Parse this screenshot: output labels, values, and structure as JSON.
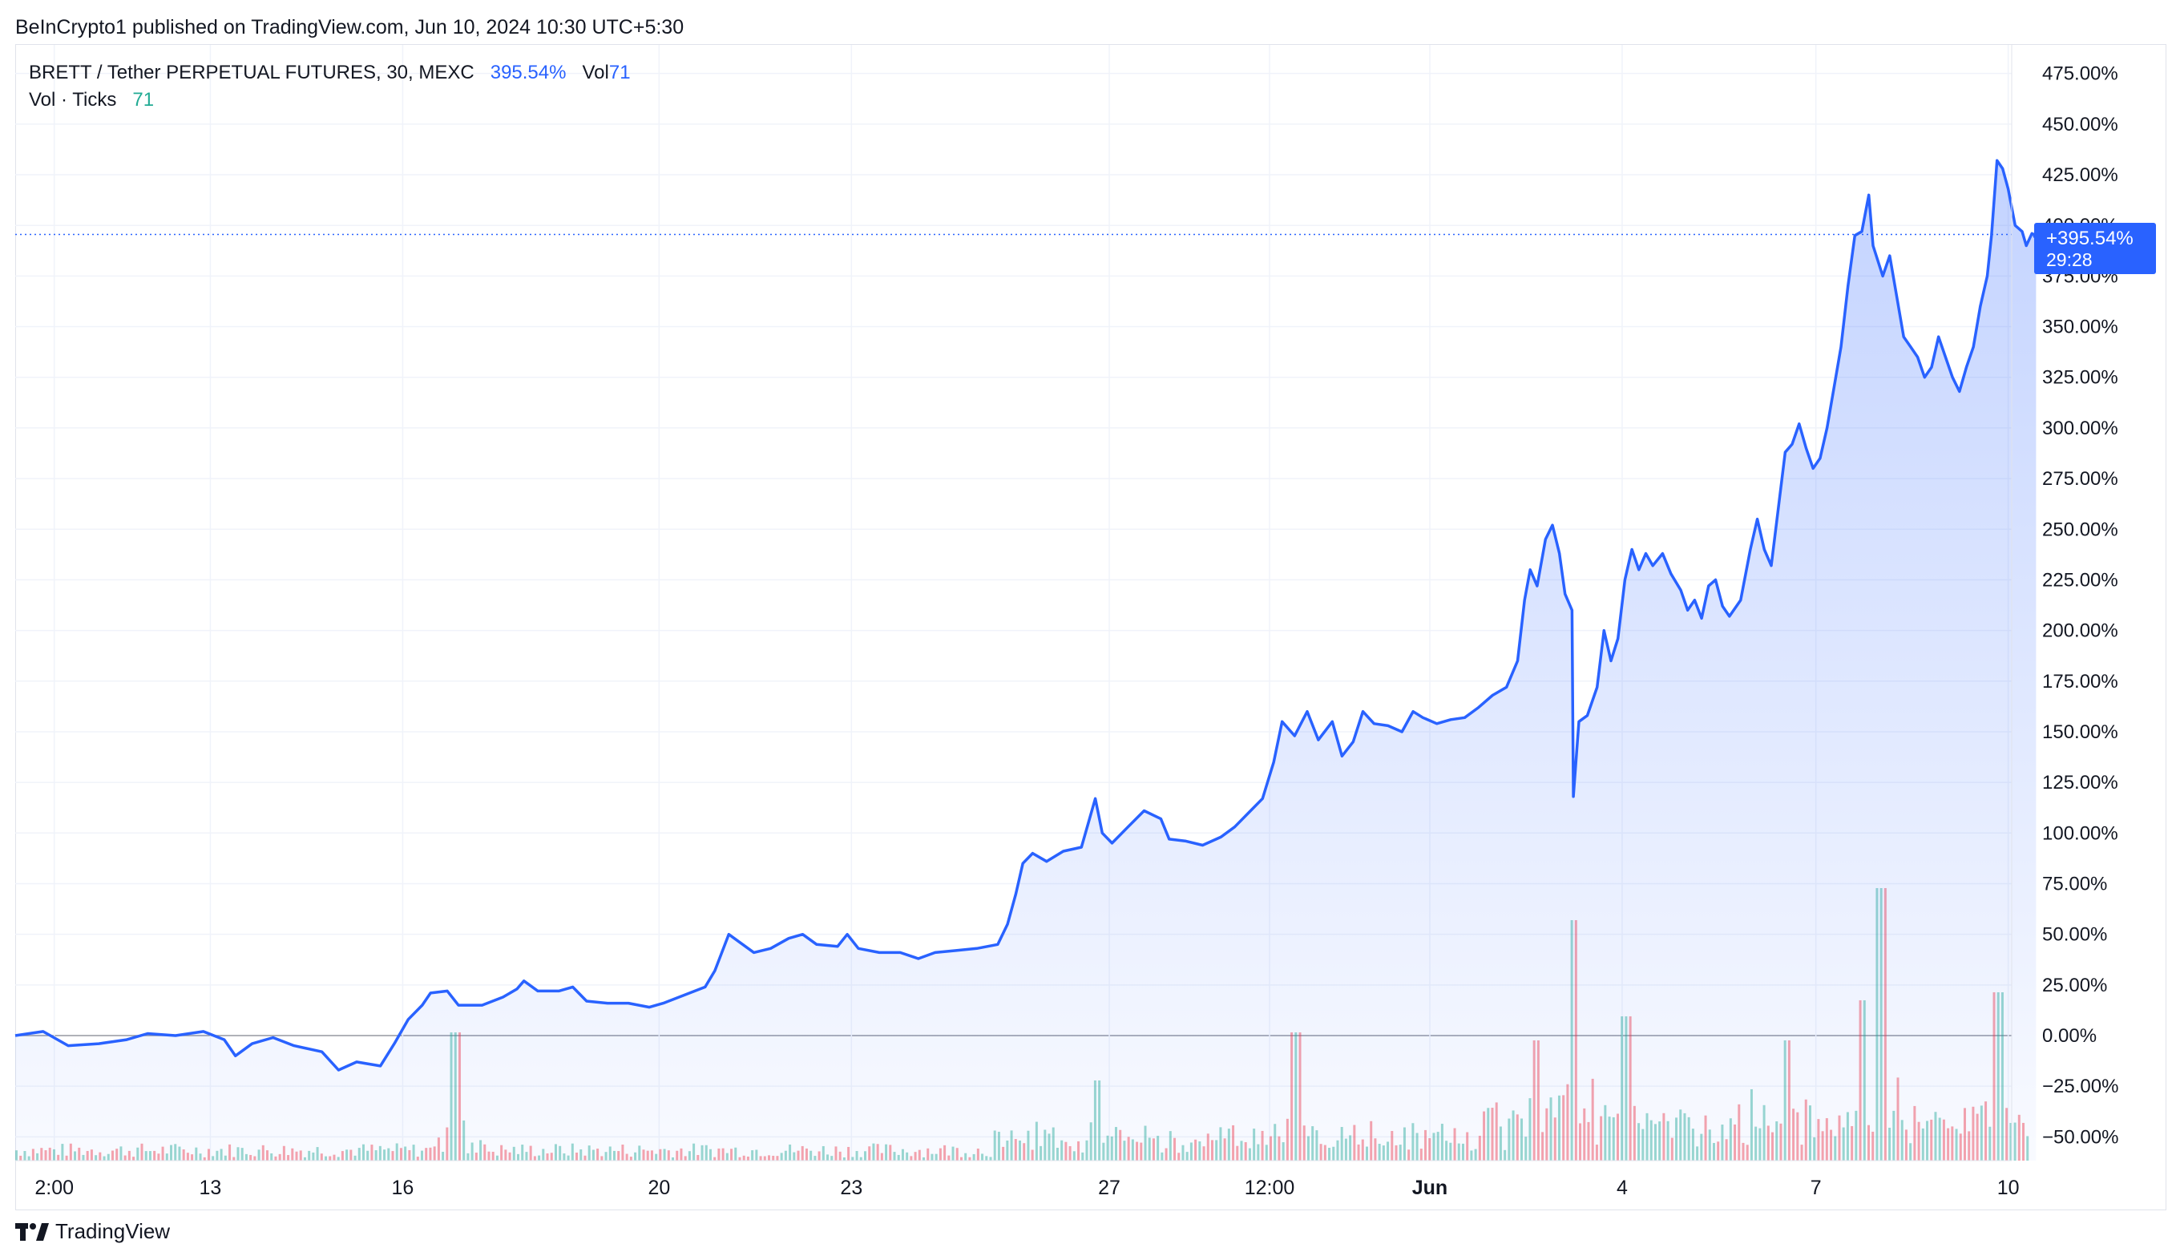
{
  "header": {
    "published_line": "BeInCrypto1 published on TradingView.com, Jun 10, 2024 10:30 UTC+5:30"
  },
  "legend": {
    "symbol": "BRETT / Tether PERPETUAL FUTURES, 30, MEXC",
    "change": "395.54%",
    "vol_label": "Vol",
    "vol_value": "71",
    "vol_ticks_label": "Vol · Ticks",
    "vol_ticks_value": "71"
  },
  "price_badge": {
    "value": "+395.54%",
    "countdown": "29:28"
  },
  "footer": {
    "brand": "TradingView"
  },
  "colors": {
    "line": "#2962ff",
    "volume_up": "#22ab94",
    "volume_down": "#f23645",
    "grid": "#f0f3fa",
    "zero_line": "#9598a1"
  },
  "chart_data": {
    "type": "area",
    "y_unit": "%",
    "y_ticks": [
      475,
      450,
      425,
      400,
      375,
      350,
      325,
      300,
      275,
      250,
      225,
      200,
      175,
      150,
      125,
      100,
      75,
      50,
      25,
      0,
      -25,
      -50
    ],
    "y_tick_labels": [
      "475.00%",
      "450.00%",
      "425.00%",
      "400.00%",
      "375.00%",
      "350.00%",
      "325.00%",
      "300.00%",
      "275.00%",
      "250.00%",
      "225.00%",
      "200.00%",
      "175.00%",
      "150.00%",
      "125.00%",
      "100.00%",
      "75.00%",
      "50.00%",
      "25.00%",
      "0.00%",
      "−25.00%",
      "−50.00%"
    ],
    "ylim": [
      -60,
      495
    ],
    "x_range": [
      0,
      1440
    ],
    "x_ticks": [
      {
        "x": 28,
        "label": "2:00",
        "bold": false
      },
      {
        "x": 140,
        "label": "13",
        "bold": false
      },
      {
        "x": 278,
        "label": "16",
        "bold": false
      },
      {
        "x": 462,
        "label": "20",
        "bold": false
      },
      {
        "x": 600,
        "label": "23",
        "bold": false
      },
      {
        "x": 785,
        "label": "27",
        "bold": false
      },
      {
        "x": 900,
        "label": "12:00",
        "bold": false
      },
      {
        "x": 1015,
        "label": "Jun",
        "bold": true
      },
      {
        "x": 1153,
        "label": "4",
        "bold": false
      },
      {
        "x": 1292,
        "label": "7",
        "bold": false
      },
      {
        "x": 1430,
        "label": "10",
        "bold": false
      }
    ],
    "last_value": 395.54,
    "series": [
      {
        "points": [
          [
            0,
            0
          ],
          [
            20,
            2
          ],
          [
            38,
            -5
          ],
          [
            60,
            -4
          ],
          [
            80,
            -2
          ],
          [
            95,
            1
          ],
          [
            115,
            0
          ],
          [
            135,
            2
          ],
          [
            150,
            -2
          ],
          [
            158,
            -10
          ],
          [
            170,
            -4
          ],
          [
            185,
            -1
          ],
          [
            200,
            -5
          ],
          [
            220,
            -8
          ],
          [
            232,
            -17
          ],
          [
            245,
            -13
          ],
          [
            262,
            -15
          ],
          [
            272,
            -4
          ],
          [
            282,
            8
          ],
          [
            292,
            15
          ],
          [
            298,
            21
          ],
          [
            310,
            22
          ],
          [
            318,
            15
          ],
          [
            335,
            15
          ],
          [
            350,
            19
          ],
          [
            360,
            23
          ],
          [
            365,
            27
          ],
          [
            375,
            22
          ],
          [
            390,
            22
          ],
          [
            400,
            24
          ],
          [
            410,
            17
          ],
          [
            425,
            16
          ],
          [
            440,
            16
          ],
          [
            455,
            14
          ],
          [
            465,
            16
          ],
          [
            480,
            20
          ],
          [
            495,
            24
          ],
          [
            502,
            32
          ],
          [
            512,
            50
          ],
          [
            520,
            46
          ],
          [
            530,
            41
          ],
          [
            542,
            43
          ],
          [
            555,
            48
          ],
          [
            565,
            50
          ],
          [
            575,
            45
          ],
          [
            590,
            44
          ],
          [
            597,
            50
          ],
          [
            605,
            43
          ],
          [
            620,
            41
          ],
          [
            635,
            41
          ],
          [
            648,
            38
          ],
          [
            660,
            41
          ],
          [
            675,
            42
          ],
          [
            690,
            43
          ],
          [
            705,
            45
          ],
          [
            712,
            55
          ],
          [
            718,
            70
          ],
          [
            723,
            85
          ],
          [
            730,
            90
          ],
          [
            740,
            86
          ],
          [
            752,
            91
          ],
          [
            765,
            93
          ],
          [
            775,
            117
          ],
          [
            780,
            100
          ],
          [
            787,
            95
          ],
          [
            797,
            102
          ],
          [
            810,
            111
          ],
          [
            822,
            107
          ],
          [
            828,
            97
          ],
          [
            840,
            96
          ],
          [
            852,
            94
          ],
          [
            865,
            98
          ],
          [
            875,
            103
          ],
          [
            885,
            110
          ],
          [
            895,
            117
          ],
          [
            903,
            135
          ],
          [
            909,
            155
          ],
          [
            918,
            148
          ],
          [
            927,
            160
          ],
          [
            935,
            146
          ],
          [
            945,
            155
          ],
          [
            952,
            138
          ],
          [
            960,
            145
          ],
          [
            967,
            160
          ],
          [
            975,
            154
          ],
          [
            985,
            153
          ],
          [
            995,
            150
          ],
          [
            1003,
            160
          ],
          [
            1010,
            157
          ],
          [
            1020,
            154
          ],
          [
            1030,
            156
          ],
          [
            1040,
            157
          ],
          [
            1050,
            162
          ],
          [
            1060,
            168
          ],
          [
            1070,
            172
          ],
          [
            1078,
            185
          ],
          [
            1083,
            215
          ],
          [
            1087,
            230
          ],
          [
            1092,
            222
          ],
          [
            1098,
            245
          ],
          [
            1103,
            252
          ],
          [
            1108,
            238
          ],
          [
            1112,
            218
          ],
          [
            1117,
            210
          ],
          [
            1118,
            118
          ],
          [
            1122,
            155
          ],
          [
            1128,
            158
          ],
          [
            1135,
            172
          ],
          [
            1140,
            200
          ],
          [
            1145,
            185
          ],
          [
            1150,
            196
          ],
          [
            1155,
            225
          ],
          [
            1160,
            240
          ],
          [
            1165,
            230
          ],
          [
            1170,
            238
          ],
          [
            1175,
            232
          ],
          [
            1182,
            238
          ],
          [
            1188,
            228
          ],
          [
            1195,
            220
          ],
          [
            1200,
            210
          ],
          [
            1205,
            215
          ],
          [
            1210,
            206
          ],
          [
            1215,
            222
          ],
          [
            1220,
            225
          ],
          [
            1225,
            212
          ],
          [
            1230,
            207
          ],
          [
            1238,
            215
          ],
          [
            1245,
            240
          ],
          [
            1250,
            255
          ],
          [
            1255,
            240
          ],
          [
            1260,
            232
          ],
          [
            1265,
            260
          ],
          [
            1270,
            288
          ],
          [
            1275,
            292
          ],
          [
            1280,
            302
          ],
          [
            1285,
            290
          ],
          [
            1290,
            280
          ],
          [
            1295,
            285
          ],
          [
            1300,
            300
          ],
          [
            1305,
            320
          ],
          [
            1310,
            340
          ],
          [
            1315,
            370
          ],
          [
            1320,
            395
          ],
          [
            1325,
            397
          ],
          [
            1330,
            415
          ],
          [
            1333,
            390
          ],
          [
            1340,
            375
          ],
          [
            1345,
            385
          ],
          [
            1350,
            365
          ],
          [
            1355,
            345
          ],
          [
            1360,
            340
          ],
          [
            1365,
            335
          ],
          [
            1370,
            325
          ],
          [
            1375,
            330
          ],
          [
            1380,
            345
          ],
          [
            1385,
            335
          ],
          [
            1390,
            325
          ],
          [
            1395,
            318
          ],
          [
            1400,
            330
          ],
          [
            1405,
            340
          ],
          [
            1410,
            360
          ],
          [
            1415,
            375
          ],
          [
            1418,
            395
          ],
          [
            1422,
            432
          ],
          [
            1426,
            428
          ],
          [
            1430,
            418
          ],
          [
            1435,
            400
          ],
          [
            1440,
            397
          ],
          [
            1443,
            390
          ],
          [
            1447,
            396
          ],
          [
            1450,
            395
          ]
        ]
      }
    ]
  }
}
